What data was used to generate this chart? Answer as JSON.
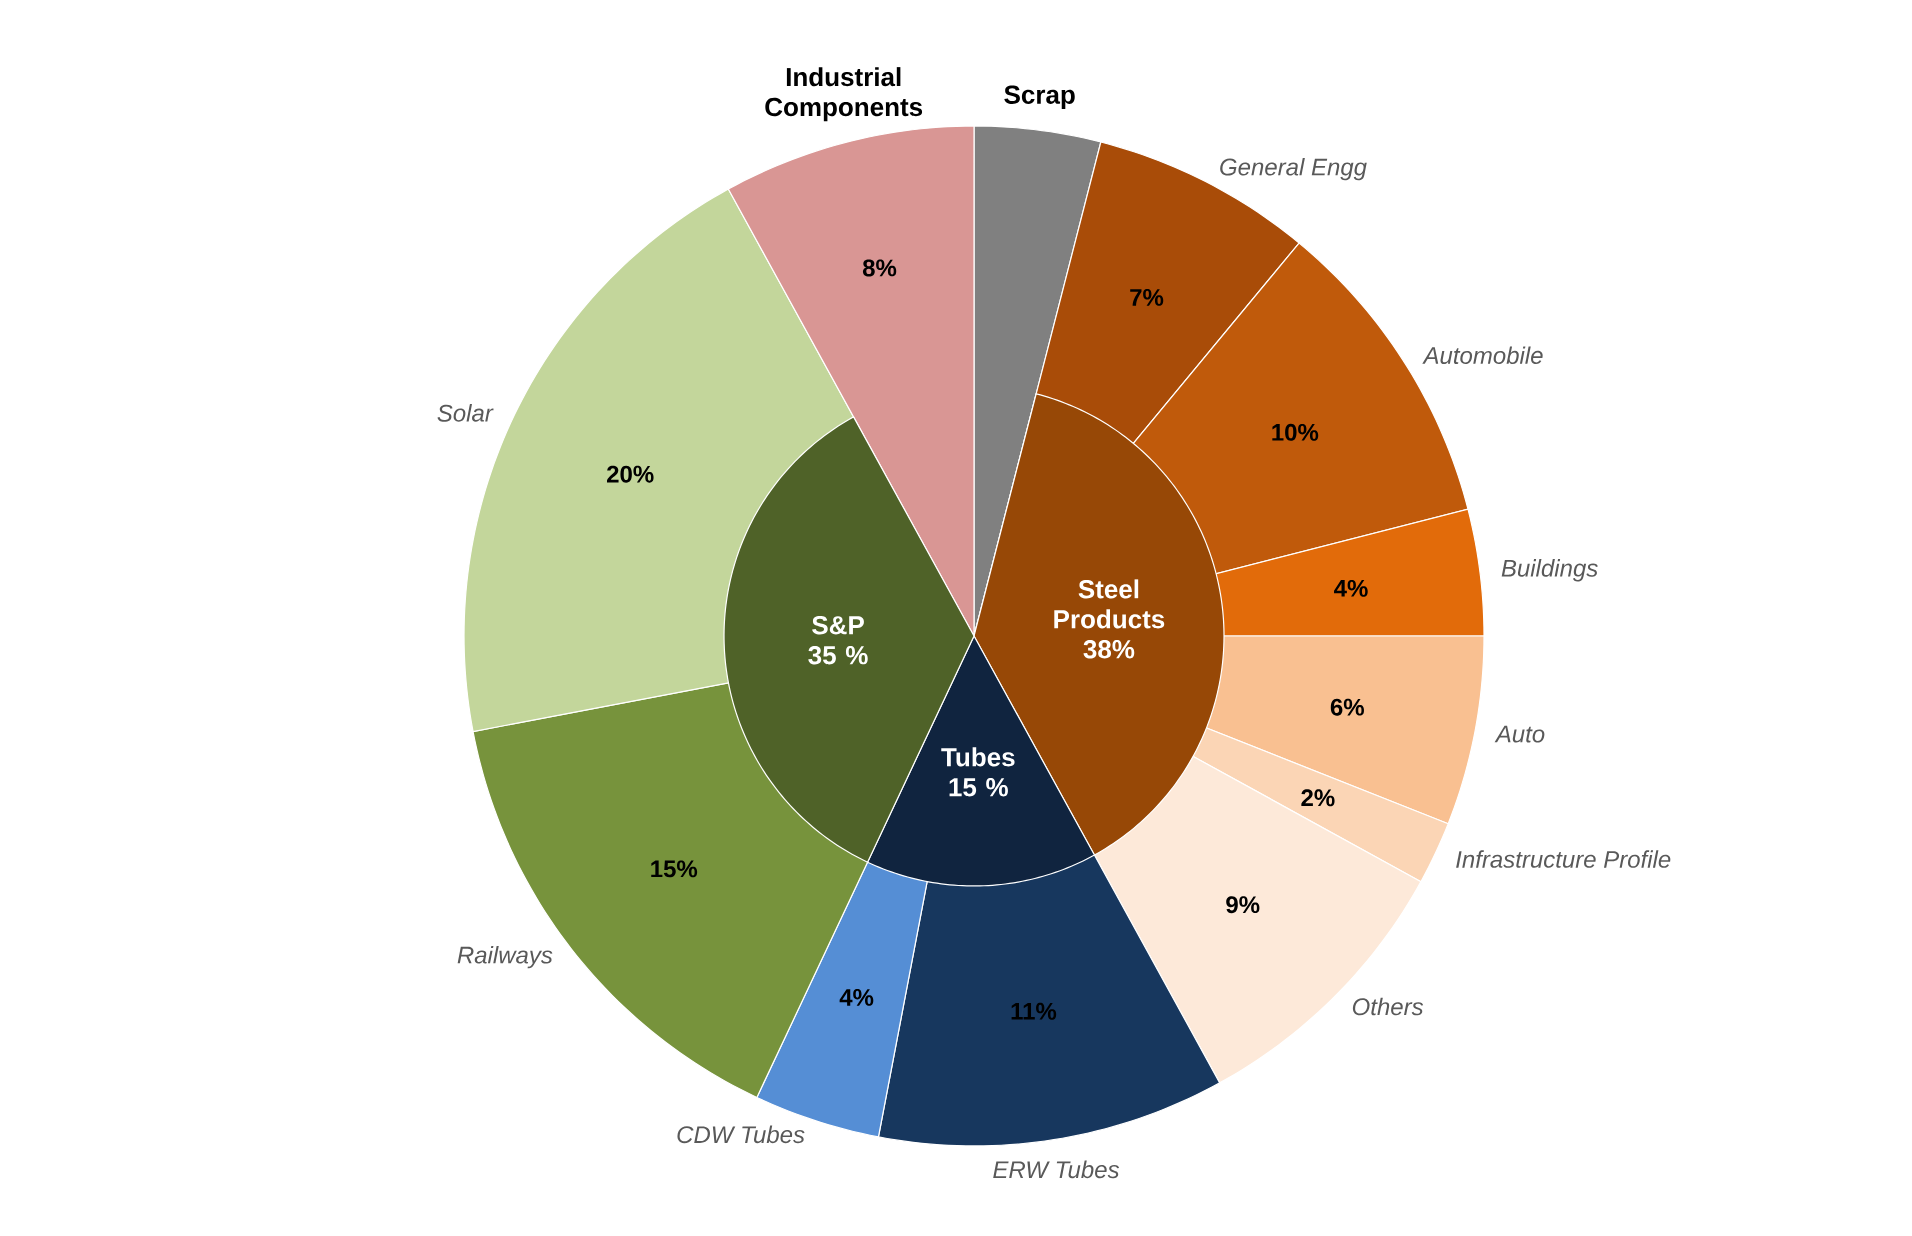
{
  "chart_data": [
    {
      "type": "pie",
      "categories": [
        "Scrap",
        "General Engg",
        "Automobile",
        "Buildings",
        "Auto",
        "Infrastructure Profile",
        "Others",
        "ERW Tubes",
        "CDW Tubes",
        "Railways",
        "Solar",
        "Industrial Components"
      ],
      "values": [
        4,
        7,
        10,
        4,
        6,
        2,
        9,
        11,
        4,
        15,
        20,
        8
      ],
      "value_labels": [
        null,
        "7%",
        "10%",
        "4%",
        "6%",
        "2%",
        "9%",
        "11%",
        "4%",
        "15%",
        "20%",
        "8%"
      ],
      "colors": [
        "#808080",
        "#a94c08",
        "#c05a0b",
        "#e26b0a",
        "#f9c091",
        "#fbd5b5",
        "#fde9d9",
        "#17375e",
        "#558ed5",
        "#77933c",
        "#c3d69b",
        "#d99694"
      ]
    },
    {
      "type": "pie",
      "categories": [
        "Steel Products",
        "Tubes",
        "S&P"
      ],
      "values": [
        38,
        15,
        35
      ],
      "value_labels": [
        "38%",
        "15 %",
        "35 %"
      ],
      "colors": [
        "#974806",
        "#10243f",
        "#4f6228"
      ]
    }
  ]
}
